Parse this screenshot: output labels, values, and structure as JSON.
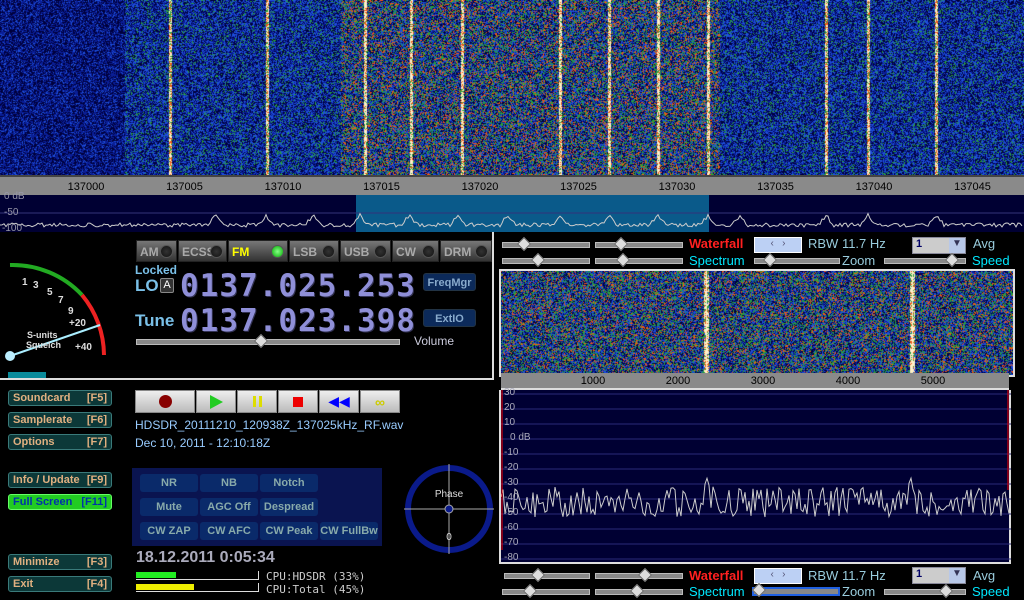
{
  "main_waterfall": {
    "freq_ticks": [
      "137000",
      "137005",
      "137010",
      "137015",
      "137020",
      "137025",
      "137030",
      "137035",
      "137040",
      "137045"
    ],
    "db_labels": [
      "0 dB",
      "-50",
      "-100"
    ]
  },
  "smeter": {
    "labels": [
      "1",
      "3",
      "5",
      "7",
      "9",
      "+20",
      "+40"
    ],
    "caption1": "S-units",
    "caption2": "Squelch"
  },
  "modes": [
    {
      "label": "AM",
      "active": false
    },
    {
      "label": "ECSS",
      "active": false
    },
    {
      "label": "FM",
      "active": true
    },
    {
      "label": "LSB",
      "active": false
    },
    {
      "label": "USB",
      "active": false
    },
    {
      "label": "CW",
      "active": false
    },
    {
      "label": "DRM",
      "active": false
    }
  ],
  "lo": {
    "status": "Locked",
    "label": "LO",
    "lock_badge": "A",
    "freq": "0137.025.253"
  },
  "tune": {
    "label": "Tune",
    "freq": "0137.023.398"
  },
  "buttons": {
    "freqmgr": "FreqMgr",
    "extio": "ExtIO"
  },
  "volume": {
    "label": "Volume",
    "level": 0.47
  },
  "side_buttons": [
    {
      "label": "Soundcard",
      "key": "[F5]"
    },
    {
      "label": "Samplerate",
      "key": "[F6]"
    },
    {
      "label": "Options",
      "key": "[F7]"
    },
    {
      "label": "Info / Update",
      "key": "[F9]"
    },
    {
      "label": "Full Screen",
      "key": "[F11]"
    },
    {
      "label": "Minimize",
      "key": "[F3]"
    },
    {
      "label": "Exit",
      "key": "[F4]"
    }
  ],
  "transport": [
    "record",
    "play",
    "pause",
    "stop",
    "rewind",
    "loop"
  ],
  "recording": {
    "filename": "HDSDR_20111210_120938Z_137025kHz_RF.wav",
    "timestamp": "Dec 10, 2011 - 12:10:18Z"
  },
  "dsp_buttons": [
    "NR",
    "NB",
    "Notch",
    "Mute",
    "AGC Off",
    "Despread",
    "CW ZAP",
    "CW AFC",
    "CW Peak",
    "CW FullBw"
  ],
  "phase": {
    "label": "Phase",
    "value": "0"
  },
  "clock": "18.12.2011 0:05:34",
  "cpu": {
    "hdsdr_label": "CPU:HDSDR (33%)",
    "hdsdr": 0.33,
    "total_label": "CPU:Total (45%)",
    "total": 0.45
  },
  "audio_panel": {
    "waterfall_label": "Waterfall",
    "spectrum_label": "Spectrum",
    "zoom_label": "Zoom",
    "speed_label": "Speed",
    "rbw": "RBW 11.7 Hz",
    "avg_value": "1",
    "avg_label": "Avg",
    "freq_ticks": [
      "1000",
      "2000",
      "3000",
      "4000",
      "5000"
    ],
    "db_labels": [
      "30",
      "20",
      "10",
      "0 dB",
      "-10",
      "-20",
      "-30",
      "-40",
      "-50",
      "-60",
      "-70",
      "-80"
    ]
  },
  "colors": {
    "waterfall_bg": "#0a1a8a",
    "spectrum_bg": "#000033",
    "highlight": "#0a5a8a",
    "red_label": "#ff2020",
    "cyan_label": "#00e8ff"
  }
}
